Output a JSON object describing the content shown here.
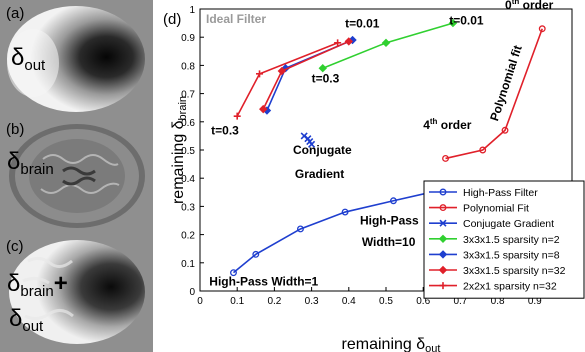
{
  "panels": [
    {
      "letter": "(a)",
      "label": "δ",
      "sub": "out",
      "extra": ""
    },
    {
      "letter": "(b)",
      "label": "δ",
      "sub": "brain",
      "extra": ""
    },
    {
      "letter": "(c)",
      "label": "δ",
      "sub": "brain",
      "extra": "+",
      "label2": "δ",
      "sub2": "out"
    }
  ],
  "chart_data": {
    "type": "scatter",
    "panel_letter": "(d)",
    "corner_text": "Ideal Filter",
    "xlabel": "remaining δ",
    "xlabel_sub": "out",
    "ylabel": "remaining δ",
    "ylabel_sub": "brain",
    "xlim": [
      0,
      1
    ],
    "ylim": [
      0,
      1
    ],
    "xticks": [
      "0",
      "0.1",
      "0.2",
      "0.3",
      "0.4",
      "0.5",
      "0.6",
      "0.7",
      "0.8",
      "0.9"
    ],
    "yticks": [
      "0",
      "0.1",
      "0.2",
      "0.3",
      "0.4",
      "0.5",
      "0.6",
      "0.7",
      "0.8",
      "0.9",
      "1"
    ],
    "grid": false,
    "legend_position": "bottom-right",
    "series": [
      {
        "name": "High-Pass Filter",
        "color": "#1f3fcf",
        "marker": "circle",
        "x": [
          0.09,
          0.15,
          0.27,
          0.39,
          0.52,
          0.62
        ],
        "y": [
          0.065,
          0.13,
          0.22,
          0.28,
          0.32,
          0.35
        ]
      },
      {
        "name": "Polynomial Fit",
        "color": "#e0202a",
        "marker": "circle",
        "x": [
          0.66,
          0.76,
          0.82,
          0.92
        ],
        "y": [
          0.47,
          0.5,
          0.57,
          0.93
        ]
      },
      {
        "name": "Conjugate Gradient",
        "color": "#1f3fcf",
        "marker": "x",
        "x": [
          0.28,
          0.29,
          0.295,
          0.3
        ],
        "y": [
          0.55,
          0.54,
          0.53,
          0.52
        ]
      },
      {
        "name": "3x3x1.5 sparsity n=2",
        "color": "#30d030",
        "marker": "diamond",
        "x": [
          0.33,
          0.5,
          0.68
        ],
        "y": [
          0.79,
          0.88,
          0.95
        ]
      },
      {
        "name": "3x3x1.5 sparsity n=8",
        "color": "#1f3fcf",
        "marker": "diamond",
        "x": [
          0.18,
          0.23,
          0.41
        ],
        "y": [
          0.64,
          0.79,
          0.89
        ]
      },
      {
        "name": "3x3x1.5 sparsity n=32",
        "color": "#e0202a",
        "marker": "diamond",
        "x": [
          0.17,
          0.22,
          0.4
        ],
        "y": [
          0.645,
          0.78,
          0.885
        ]
      },
      {
        "name": "2x2x1 sparsity n=32",
        "color": "#e0202a",
        "marker": "plus",
        "x": [
          0.1,
          0.16,
          0.37
        ],
        "y": [
          0.62,
          0.77,
          0.88
        ]
      }
    ],
    "annotations": [
      {
        "text": "t=0.01",
        "x": 0.39,
        "y": 0.935,
        "color": "#000000",
        "weight": "bold"
      },
      {
        "text": "t=0.01",
        "x": 0.67,
        "y": 0.945,
        "color": "#000000",
        "weight": "bold"
      },
      {
        "text": "t=0.3",
        "x": 0.3,
        "y": 0.74,
        "color": "#000000",
        "weight": "bold"
      },
      {
        "text": "t=0.3",
        "x": 0.03,
        "y": 0.555,
        "color": "#000000",
        "weight": "bold"
      },
      {
        "text": "Conjugate",
        "x": 0.25,
        "y": 0.485,
        "color": "#000000",
        "weight": "bold"
      },
      {
        "text": "Gradient",
        "x": 0.255,
        "y": 0.4,
        "color": "#000000",
        "weight": "bold"
      },
      {
        "text": "4th order",
        "x": 0.6,
        "y": 0.575,
        "color": "#000000",
        "weight": "bold"
      },
      {
        "text": "0th order",
        "x": 0.82,
        "y": 1.0,
        "color": "#000000",
        "weight": "bold"
      },
      {
        "text": "Polynomial fit",
        "x": 0.8,
        "y": 0.6,
        "color": "#000000",
        "weight": "bold",
        "rotate": -72
      },
      {
        "text": "High-Pass",
        "x": 0.43,
        "y": 0.235,
        "color": "#000000",
        "weight": "bold"
      },
      {
        "text": "Width=10",
        "x": 0.435,
        "y": 0.16,
        "color": "#000000",
        "weight": "bold"
      },
      {
        "text": "High-Pass Width=1",
        "x": 0.025,
        "y": 0.02,
        "color": "#000000",
        "weight": "bold"
      }
    ]
  }
}
